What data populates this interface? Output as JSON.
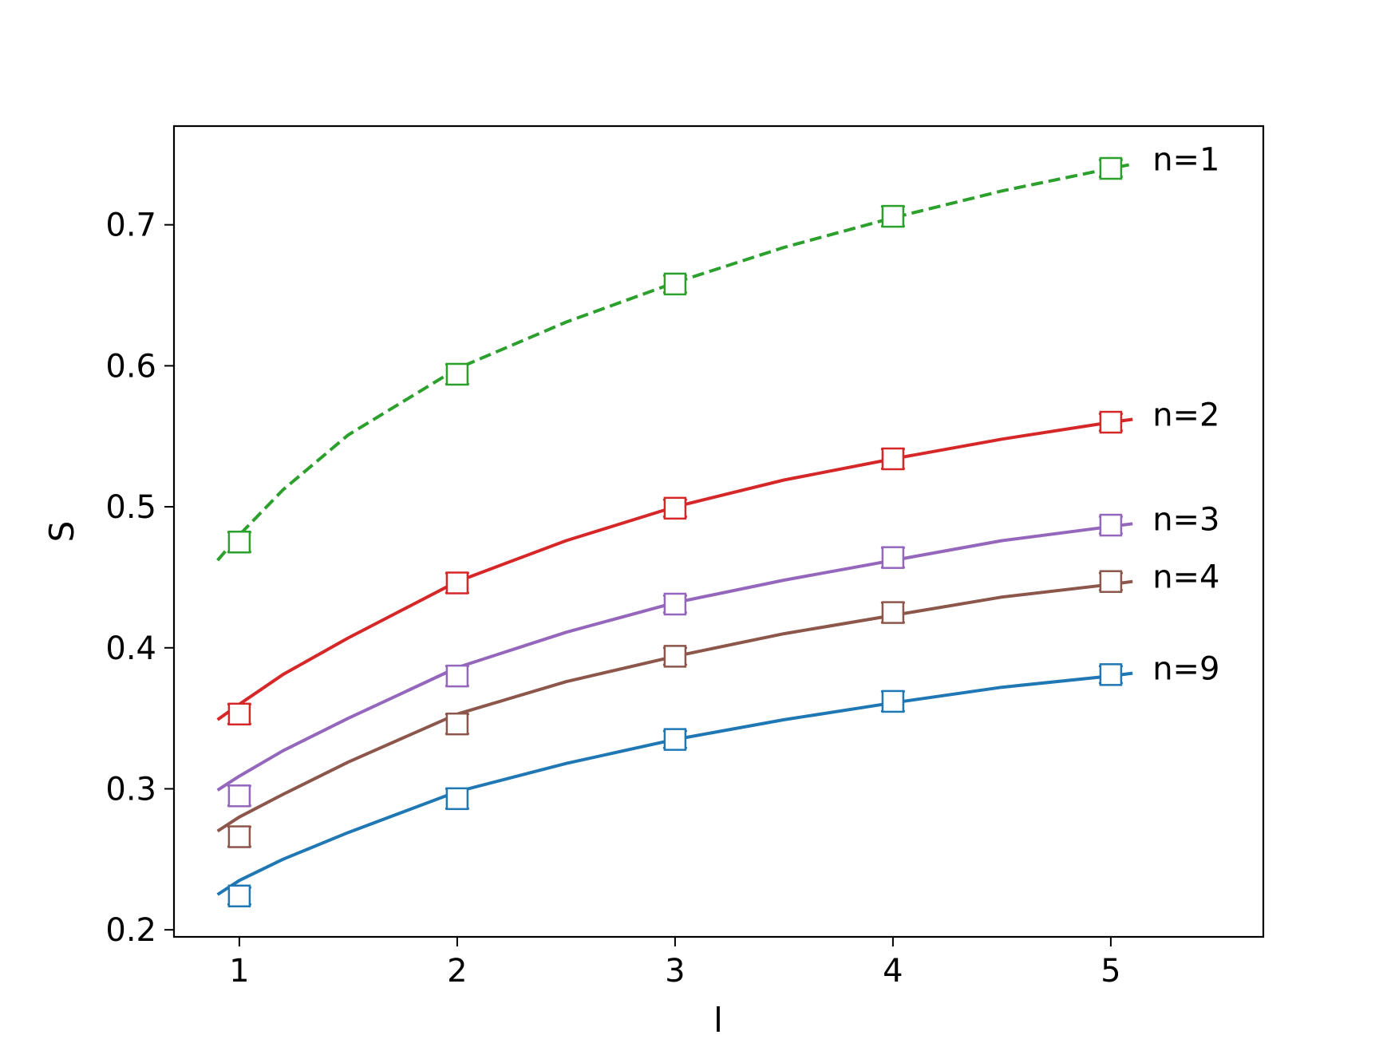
{
  "chart_data": {
    "type": "scatter",
    "title": "",
    "xlabel": "l",
    "ylabel": "S",
    "xlim": [
      0.7,
      5.7
    ],
    "ylim": [
      0.195,
      0.77
    ],
    "xticks": [
      1,
      2,
      3,
      4,
      5
    ],
    "yticks": [
      0.2,
      0.3,
      0.4,
      0.5,
      0.6,
      0.7
    ],
    "ytick_labels": [
      "0.2",
      "0.3",
      "0.4",
      "0.5",
      "0.6",
      "0.7"
    ],
    "xtick_labels": [
      "1",
      "2",
      "3",
      "4",
      "5"
    ],
    "grid": false,
    "legend": "none",
    "marker": "open-square-with-errorbars",
    "series": [
      {
        "label": "n=1",
        "color": "#2ca02c",
        "line_style": "dashed",
        "x": [
          1,
          2,
          3,
          4,
          5
        ],
        "y": [
          0.475,
          0.594,
          0.658,
          0.706,
          0.74
        ],
        "yerr": [
          0.007,
          0.007,
          0.006,
          0.007,
          0.006
        ],
        "fit_x": [
          0.9,
          1.0,
          1.2,
          1.5,
          2.0,
          2.5,
          3.0,
          3.5,
          4.0,
          4.5,
          5.0,
          5.1
        ],
        "fit_y": [
          0.462,
          0.48,
          0.512,
          0.551,
          0.598,
          0.631,
          0.659,
          0.684,
          0.705,
          0.724,
          0.74,
          0.743
        ]
      },
      {
        "label": "n=2",
        "color": "#d62728",
        "line_style": "solid",
        "x": [
          1,
          2,
          3,
          4,
          5
        ],
        "y": [
          0.353,
          0.446,
          0.499,
          0.534,
          0.56
        ],
        "yerr": [
          0.007,
          0.007,
          0.006,
          0.007,
          0.006
        ],
        "fit_x": [
          0.9,
          1.0,
          1.2,
          1.5,
          2.0,
          2.5,
          3.0,
          3.5,
          4.0,
          4.5,
          5.0,
          5.1
        ],
        "fit_y": [
          0.349,
          0.36,
          0.381,
          0.407,
          0.447,
          0.476,
          0.5,
          0.519,
          0.534,
          0.548,
          0.56,
          0.562
        ]
      },
      {
        "label": "n=3",
        "color": "#9467bd",
        "line_style": "solid",
        "x": [
          1,
          2,
          3,
          4,
          5
        ],
        "y": [
          0.295,
          0.38,
          0.431,
          0.464,
          0.487
        ],
        "yerr": [
          0.007,
          0.007,
          0.006,
          0.007,
          0.006
        ],
        "fit_x": [
          0.9,
          1.0,
          1.2,
          1.5,
          2.0,
          2.5,
          3.0,
          3.5,
          4.0,
          4.5,
          5.0,
          5.1
        ],
        "fit_y": [
          0.299,
          0.309,
          0.327,
          0.35,
          0.386,
          0.411,
          0.432,
          0.448,
          0.462,
          0.476,
          0.486,
          0.488
        ]
      },
      {
        "label": "n=4",
        "color": "#8c564b",
        "line_style": "solid",
        "x": [
          1,
          2,
          3,
          4,
          5
        ],
        "y": [
          0.266,
          0.346,
          0.394,
          0.425,
          0.447
        ],
        "yerr": [
          0.007,
          0.007,
          0.006,
          0.007,
          0.006
        ],
        "fit_x": [
          0.9,
          1.0,
          1.2,
          1.5,
          2.0,
          2.5,
          3.0,
          3.5,
          4.0,
          4.5,
          5.0,
          5.1
        ],
        "fit_y": [
          0.27,
          0.28,
          0.296,
          0.319,
          0.353,
          0.376,
          0.394,
          0.41,
          0.423,
          0.436,
          0.445,
          0.447
        ]
      },
      {
        "label": "n=9",
        "color": "#1f77b4",
        "line_style": "solid",
        "x": [
          1,
          2,
          3,
          4,
          5
        ],
        "y": [
          0.224,
          0.293,
          0.335,
          0.362,
          0.381
        ],
        "yerr": [
          0.006,
          0.007,
          0.006,
          0.007,
          0.006
        ],
        "fit_x": [
          0.9,
          1.0,
          1.2,
          1.5,
          2.0,
          2.5,
          3.0,
          3.5,
          4.0,
          4.5,
          5.0,
          5.1
        ],
        "fit_y": [
          0.225,
          0.235,
          0.25,
          0.269,
          0.298,
          0.318,
          0.335,
          0.349,
          0.361,
          0.372,
          0.38,
          0.382
        ]
      }
    ]
  }
}
